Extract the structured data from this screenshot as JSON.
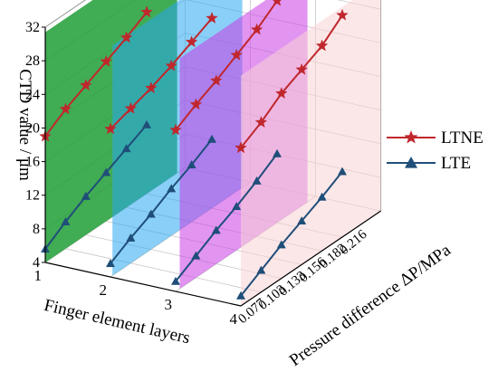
{
  "chart_data": {
    "type": "line",
    "axes": {
      "y": {
        "label": "CTD value / μm",
        "range": [
          4,
          32
        ],
        "ticks": [
          "4",
          "8",
          "12",
          "16",
          "20",
          "24",
          "28",
          "32"
        ]
      },
      "x": {
        "label": "Finger element layers",
        "ticks": [
          "1",
          "2",
          "3",
          "4"
        ]
      },
      "z": {
        "label": "Pressure difference  ΔP/MPa",
        "ticks": [
          "0.077",
          "0.103",
          "0.133",
          "0.156",
          "0.182",
          "0.216"
        ]
      }
    },
    "legend": {
      "position": "right",
      "entries": [
        "LTNE",
        "LTE"
      ]
    },
    "colors": {
      "LTNE": "#c0272d",
      "LTE": "#1f4e79",
      "plane_layer_1": "#1e9e36",
      "plane_layer_2": "#2aa8f0",
      "plane_layer_3": "#c93ee6",
      "plane_layer_4": "#f9d4d6"
    },
    "pressure_values": [
      0.077,
      0.103,
      0.133,
      0.156,
      0.182,
      0.216
    ],
    "series": [
      {
        "name": "LTNE",
        "layer": 1,
        "values": [
          19.0,
          20.6,
          21.8,
          23.0,
          24.2,
          25.6
        ]
      },
      {
        "name": "LTNE",
        "layer": 2,
        "values": [
          21.6,
          22.4,
          23.2,
          24.2,
          25.4,
          26.6
        ]
      },
      {
        "name": "LTNE",
        "layer": 3,
        "values": [
          23.2,
          24.6,
          25.8,
          27.2,
          28.6,
          30.4
        ]
      },
      {
        "name": "LTNE",
        "layer": 4,
        "values": [
          22.8,
          24.2,
          26.0,
          27.2,
          28.4,
          30.4
        ]
      },
      {
        "name": "LTE",
        "layer": 1,
        "values": [
          5.6,
          7.2,
          8.6,
          9.8,
          11.0,
          12.2
        ]
      },
      {
        "name": "LTE",
        "layer": 2,
        "values": [
          5.6,
          7.0,
          8.2,
          9.6,
          10.8,
          12.2
        ]
      },
      {
        "name": "LTE",
        "layer": 3,
        "values": [
          5.2,
          6.6,
          8.0,
          9.2,
          10.6,
          12.2
        ]
      },
      {
        "name": "LTE",
        "layer": 4,
        "values": [
          5.2,
          6.6,
          8.0,
          9.2,
          10.4,
          11.8
        ]
      }
    ]
  }
}
